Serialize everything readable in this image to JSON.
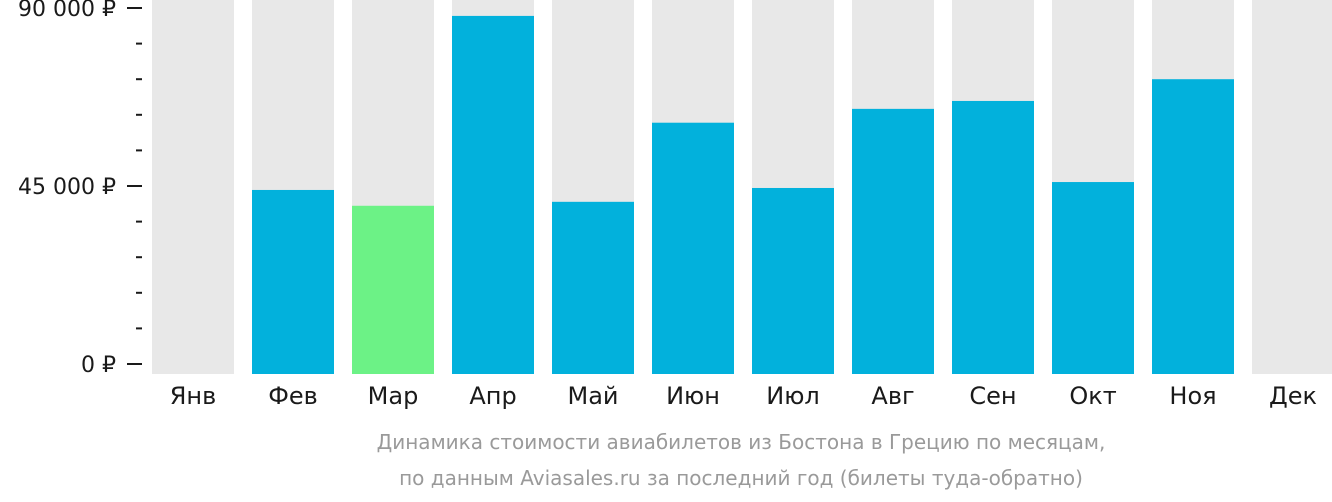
{
  "chart_data": {
    "type": "bar",
    "categories": [
      "Янв",
      "Фев",
      "Мар",
      "Апр",
      "Май",
      "Июн",
      "Июл",
      "Авг",
      "Сен",
      "Окт",
      "Ноя",
      "Дек"
    ],
    "values": [
      null,
      44000,
      40000,
      88000,
      41000,
      61000,
      44500,
      64500,
      66500,
      46000,
      72000,
      null
    ],
    "highlight_index": 2,
    "ylim": [
      0,
      90000
    ],
    "yticks": [
      {
        "value": 0,
        "label": "0 ₽"
      },
      {
        "value": 45000,
        "label": "45 000 ₽"
      },
      {
        "value": 90000,
        "label": "90 000 ₽"
      }
    ],
    "minor_tick_step": 9000,
    "colors": {
      "bar": "#02b1dc",
      "highlight": "#6cf286",
      "background_column": "#e8e8e8",
      "axis": "#1a1a1a"
    },
    "grid": false,
    "legend": "none"
  },
  "caption": {
    "line1": "Динамика стоимости авиабилетов из Бостона в Грецию по месяцам,",
    "line2": "по данным Aviasales.ru за последний год (билеты туда-обратно)"
  }
}
